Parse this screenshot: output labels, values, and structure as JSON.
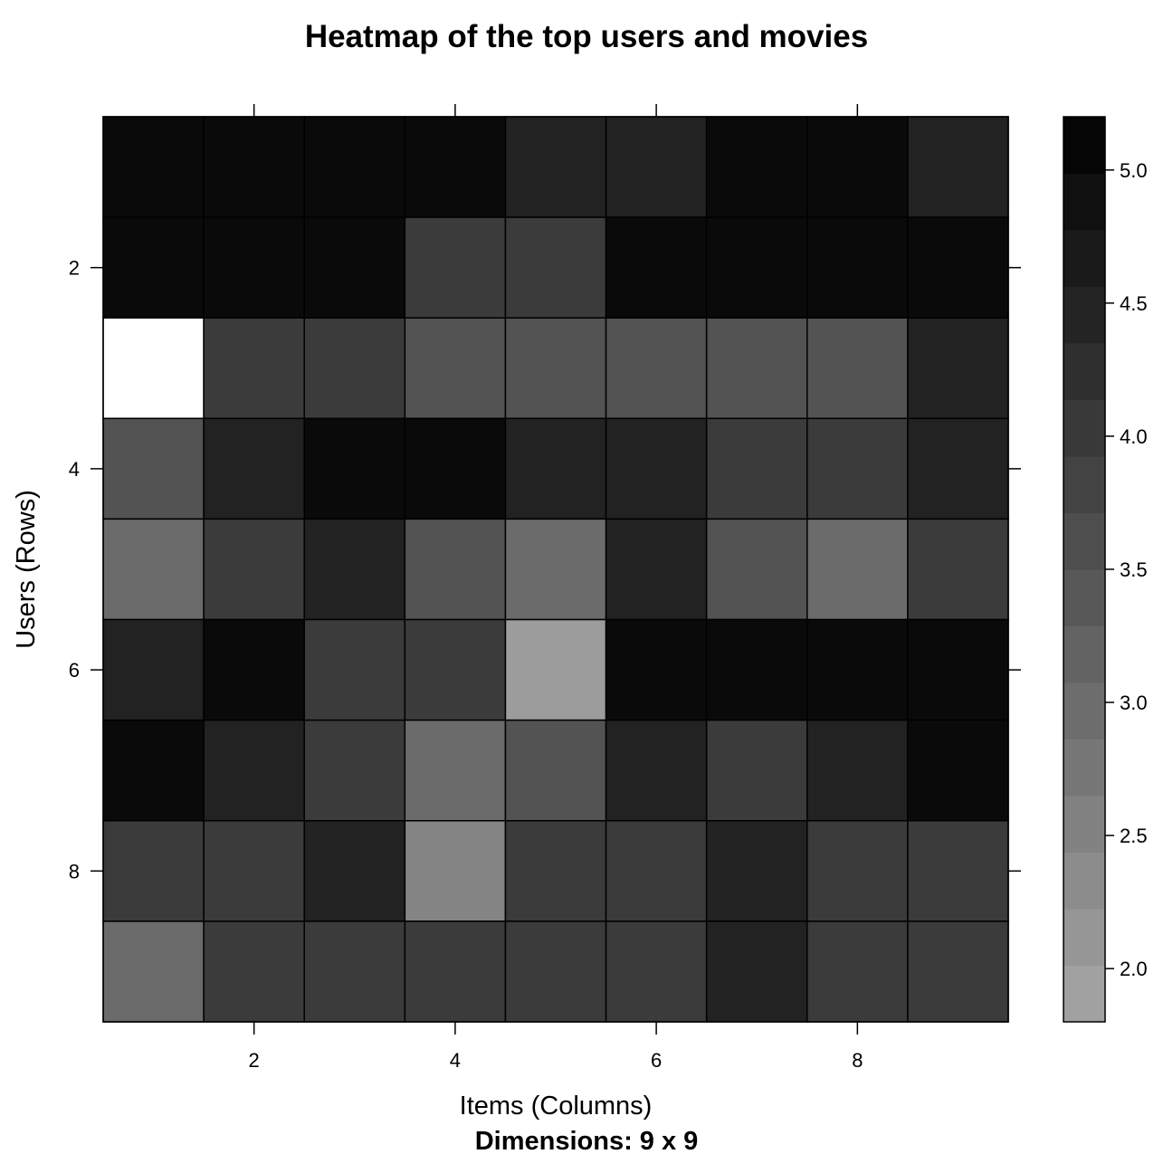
{
  "chart_data": {
    "type": "heatmap",
    "title": "Heatmap of the top users and movies",
    "xlabel": "Items (Columns)",
    "ylabel": "Users (Rows)",
    "subtitle": "Dimensions: 9 x 9",
    "x_ticks": [
      "2",
      "4",
      "6",
      "8"
    ],
    "y_ticks": [
      "2",
      "4",
      "6",
      "8"
    ],
    "xlim": [
      0.5,
      9.5
    ],
    "ylim": [
      0.5,
      9.5
    ],
    "colorbar": {
      "range": [
        1.8,
        5.2
      ],
      "ticks": [
        "2.0",
        "2.5",
        "3.0",
        "3.5",
        "4.0",
        "4.5",
        "5.0"
      ],
      "color_low": "#a6a6a6",
      "color_high": "#000000"
    },
    "values": [
      [
        5,
        5,
        5,
        5,
        4.5,
        4.5,
        5,
        5,
        4.5
      ],
      [
        5,
        5,
        5,
        4,
        4,
        5,
        5,
        5,
        5
      ],
      [
        1,
        4,
        4,
        3.5,
        3.5,
        3.5,
        3.5,
        3.5,
        4.5
      ],
      [
        3.5,
        4.5,
        5,
        5,
        4.5,
        4.5,
        4,
        4,
        4.5
      ],
      [
        3,
        4,
        4.5,
        3.5,
        3,
        4.5,
        3.5,
        3,
        4
      ],
      [
        4.5,
        5,
        4,
        4,
        2,
        5,
        5,
        5,
        5
      ],
      [
        5,
        4.5,
        4,
        3,
        3.5,
        4.5,
        4,
        4.5,
        5
      ],
      [
        4,
        4,
        4.5,
        2.5,
        4,
        4,
        4.5,
        4,
        4
      ],
      [
        3,
        4,
        4,
        4,
        4,
        4,
        4.5,
        4,
        4
      ]
    ]
  }
}
